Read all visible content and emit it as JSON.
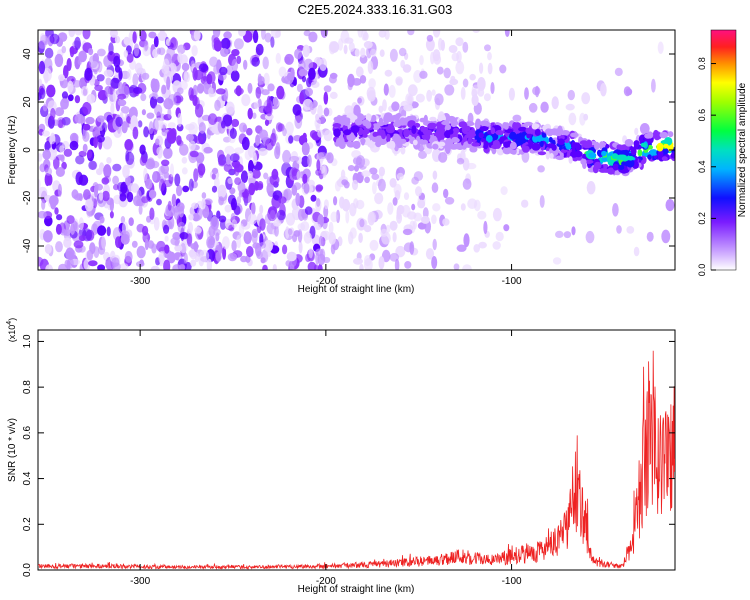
{
  "title": "C2E5.2024.333.16.31.G03",
  "chart_data": [
    {
      "type": "heatmap",
      "xlabel": "Height of straight line (km)",
      "ylabel": "Frequency (Hz)",
      "xlim": [
        -355,
        -12
      ],
      "ylim": [
        -50,
        50
      ],
      "xticks": [
        -300,
        -200,
        -100
      ],
      "yticks": [
        -40,
        -20,
        0,
        20,
        40
      ],
      "colorbar": {
        "label": "Normalized spectral amplitude",
        "range": [
          0.0,
          0.93
        ],
        "ticks": [
          0.0,
          0.2,
          0.4,
          0.6,
          0.8
        ]
      },
      "ridge": {
        "x": [
          -190,
          -160,
          -130,
          -110,
          -90,
          -70,
          -55,
          -40,
          -25,
          -12
        ],
        "y": [
          8,
          8,
          7,
          5,
          5,
          2,
          -3,
          -4,
          1,
          2
        ]
      }
    },
    {
      "type": "line",
      "xlabel": "Height of straight line (km)",
      "ylabel": "SNR (10 * v/v)",
      "yscale_label": "(x10",
      "yscale_exp": "4",
      "xlim": [
        -355,
        -12
      ],
      "ylim": [
        0,
        1.05
      ],
      "xticks": [
        -300,
        -200,
        -100
      ],
      "yticks": [
        0.0,
        0.2,
        0.4,
        0.6,
        0.8,
        1.0
      ],
      "series": [
        {
          "color": "#ee2222",
          "x": [
            -355,
            -320,
            -280,
            -240,
            -200,
            -170,
            -140,
            -130,
            -110,
            -95,
            -85,
            -75,
            -70,
            -65,
            -60,
            -57,
            -52,
            -45,
            -40,
            -35,
            -32,
            -28,
            -25,
            -20,
            -15,
            -12
          ],
          "y": [
            0.02,
            0.02,
            0.015,
            0.015,
            0.02,
            0.03,
            0.05,
            0.07,
            0.05,
            0.08,
            0.1,
            0.14,
            0.22,
            0.45,
            0.25,
            0.05,
            0.03,
            0.02,
            0.02,
            0.15,
            0.35,
            0.55,
            0.8,
            0.55,
            0.6,
            0.65
          ]
        }
      ]
    }
  ]
}
